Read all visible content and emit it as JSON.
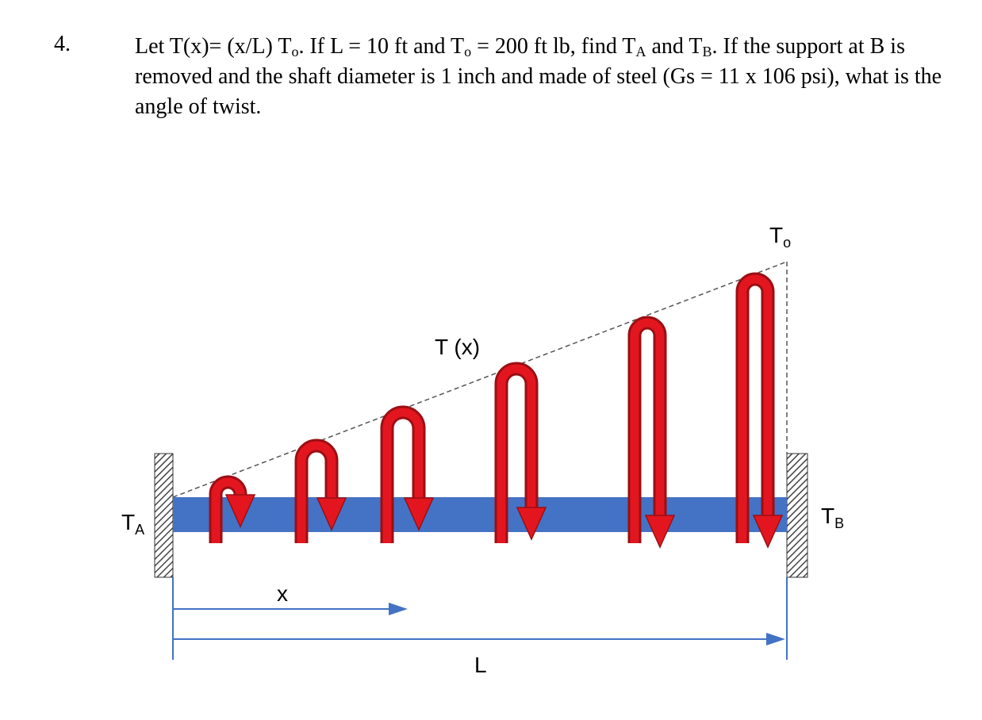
{
  "problem": {
    "number": "4.",
    "text": [
      "Let T(x)= (x/L) T",
      "o",
      ".  If L = 10 ft and T",
      "o",
      " = 200 ft lb, find T",
      "A",
      " and T",
      "B",
      ".  If the support at B is removed and the shaft diameter is 1 inch and made of steel (Gs = 11 x 106 psi), what is the angle of twist."
    ]
  },
  "diagram": {
    "load_label": [
      "T",
      "o"
    ],
    "distributed_label": "T (x)",
    "left_reaction": [
      "T",
      "A"
    ],
    "right_reaction": [
      "T",
      "B"
    ],
    "position_label": "x",
    "length_label": "L"
  }
}
